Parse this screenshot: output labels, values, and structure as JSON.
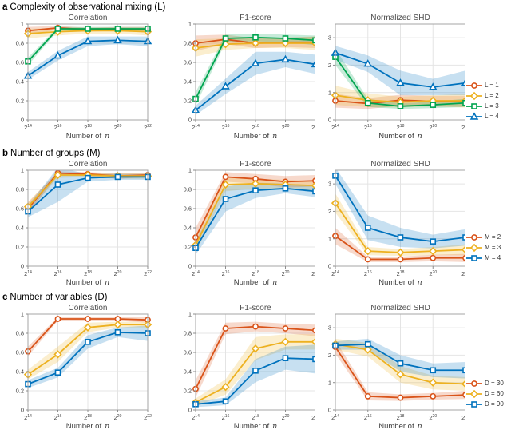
{
  "figure": {
    "xlabel": "Number of",
    "xlabel_var": "n",
    "colors": {
      "orange": "#D95319",
      "yellow": "#EDB120",
      "green": "#00A550",
      "blue": "#0072BD"
    }
  },
  "chart_data": [
    {
      "row_letter": "a",
      "row_title": "Complexity of observational mixing (L)",
      "type": "line",
      "x_tick_labels": [
        "2^14",
        "2^16",
        "2^18",
        "2^20",
        "2^22"
      ],
      "xlabel": "Number of",
      "xlabel_var": "n",
      "legend_position": "right",
      "legend": [
        {
          "label": "L = 1",
          "color": "#D95319",
          "marker": "circle"
        },
        {
          "label": "L = 2",
          "color": "#EDB120",
          "marker": "diamond"
        },
        {
          "label": "L = 3",
          "color": "#00A550",
          "marker": "square"
        },
        {
          "label": "L = 4",
          "color": "#0072BD",
          "marker": "triangle"
        }
      ],
      "panels": [
        {
          "title": "Correlation",
          "ylim": [
            0,
            1
          ],
          "yticks": [
            0,
            0.2,
            0.4,
            0.6,
            0.8,
            1
          ],
          "grid": true,
          "series": [
            {
              "name": "L = 1",
              "values": [
                0.93,
                0.96,
                0.94,
                0.95,
                0.94
              ],
              "band": [
                0.04,
                0.02,
                0.02,
                0.02,
                0.03
              ]
            },
            {
              "name": "L = 2",
              "values": [
                0.9,
                0.92,
                0.93,
                0.93,
                0.92
              ],
              "band": [
                0.05,
                0.04,
                0.03,
                0.03,
                0.04
              ]
            },
            {
              "name": "L = 3",
              "values": [
                0.61,
                0.95,
                0.95,
                0.95,
                0.95
              ],
              "band": [
                0.04,
                0.02,
                0.02,
                0.02,
                0.02
              ]
            },
            {
              "name": "L = 4",
              "values": [
                0.46,
                0.67,
                0.82,
                0.83,
                0.82
              ],
              "band": [
                0.04,
                0.05,
                0.05,
                0.04,
                0.05
              ]
            }
          ]
        },
        {
          "title": "F1-score",
          "ylim": [
            0,
            1
          ],
          "yticks": [
            0,
            0.2,
            0.4,
            0.6,
            0.8,
            1
          ],
          "grid": true,
          "series": [
            {
              "name": "L = 1",
              "values": [
                0.8,
                0.84,
                0.8,
                0.81,
                0.81
              ],
              "band": [
                0.08,
                0.05,
                0.05,
                0.05,
                0.06
              ]
            },
            {
              "name": "L = 2",
              "values": [
                0.75,
                0.79,
                0.8,
                0.8,
                0.8
              ],
              "band": [
                0.09,
                0.06,
                0.05,
                0.05,
                0.07
              ]
            },
            {
              "name": "L = 3",
              "values": [
                0.22,
                0.85,
                0.86,
                0.85,
                0.83
              ],
              "band": [
                0.07,
                0.04,
                0.04,
                0.04,
                0.05
              ]
            },
            {
              "name": "L = 4",
              "values": [
                0.1,
                0.35,
                0.59,
                0.63,
                0.58
              ],
              "band": [
                0.05,
                0.08,
                0.12,
                0.08,
                0.1
              ]
            }
          ]
        },
        {
          "title": "Normalized SHD",
          "ylim": [
            0,
            3.5
          ],
          "yticks": [
            0,
            1,
            2,
            3
          ],
          "grid": true,
          "series": [
            {
              "name": "L = 1",
              "values": [
                0.7,
                0.6,
                0.72,
                0.68,
                0.68
              ],
              "band": [
                0.25,
                0.2,
                0.2,
                0.2,
                0.2
              ]
            },
            {
              "name": "L = 2",
              "values": [
                0.9,
                0.72,
                0.65,
                0.7,
                0.7
              ],
              "band": [
                0.35,
                0.25,
                0.2,
                0.2,
                0.25
              ]
            },
            {
              "name": "L = 3",
              "values": [
                2.3,
                0.62,
                0.5,
                0.55,
                0.62
              ],
              "band": [
                0.3,
                0.15,
                0.1,
                0.12,
                0.15
              ]
            },
            {
              "name": "L = 4",
              "values": [
                2.45,
                2.05,
                1.35,
                1.2,
                1.35
              ],
              "band": [
                0.25,
                0.3,
                0.45,
                0.3,
                0.45
              ]
            }
          ]
        }
      ]
    },
    {
      "row_letter": "b",
      "row_title": "Number of groups (M)",
      "type": "line",
      "x_tick_labels": [
        "2^14",
        "2^16",
        "2^18",
        "2^20",
        "2^22"
      ],
      "xlabel": "Number of",
      "xlabel_var": "n",
      "legend_position": "right",
      "legend": [
        {
          "label": "M = 2",
          "color": "#D95319",
          "marker": "circle"
        },
        {
          "label": "M = 3",
          "color": "#EDB120",
          "marker": "diamond"
        },
        {
          "label": "M = 4",
          "color": "#0072BD",
          "marker": "square"
        }
      ],
      "panels": [
        {
          "title": "Correlation",
          "ylim": [
            0,
            1
          ],
          "yticks": [
            0,
            0.2,
            0.4,
            0.6,
            0.8,
            1
          ],
          "grid": true,
          "series": [
            {
              "name": "M = 2",
              "values": [
                0.6,
                0.97,
                0.96,
                0.94,
                0.95
              ],
              "band": [
                0.06,
                0.02,
                0.02,
                0.03,
                0.02
              ]
            },
            {
              "name": "M = 3",
              "values": [
                0.62,
                0.95,
                0.95,
                0.94,
                0.94
              ],
              "band": [
                0.05,
                0.03,
                0.02,
                0.03,
                0.03
              ]
            },
            {
              "name": "M = 4",
              "values": [
                0.57,
                0.85,
                0.92,
                0.93,
                0.93
              ],
              "band": [
                0.06,
                0.18,
                0.04,
                0.03,
                0.03
              ]
            }
          ]
        },
        {
          "title": "F1-score",
          "ylim": [
            0,
            1
          ],
          "yticks": [
            0,
            0.2,
            0.4,
            0.6,
            0.8,
            1
          ],
          "grid": true,
          "series": [
            {
              "name": "M = 2",
              "values": [
                0.3,
                0.93,
                0.91,
                0.88,
                0.89
              ],
              "band": [
                0.1,
                0.05,
                0.05,
                0.06,
                0.06
              ]
            },
            {
              "name": "M = 3",
              "values": [
                0.22,
                0.85,
                0.86,
                0.85,
                0.84
              ],
              "band": [
                0.08,
                0.07,
                0.05,
                0.05,
                0.05
              ]
            },
            {
              "name": "M = 4",
              "values": [
                0.19,
                0.7,
                0.79,
                0.81,
                0.78
              ],
              "band": [
                0.07,
                0.13,
                0.08,
                0.05,
                0.06
              ]
            }
          ]
        },
        {
          "title": "Normalized SHD",
          "ylim": [
            0,
            3.5
          ],
          "yticks": [
            0,
            1,
            2,
            3
          ],
          "grid": true,
          "series": [
            {
              "name": "M = 2",
              "values": [
                1.1,
                0.25,
                0.25,
                0.3,
                0.3
              ],
              "band": [
                0.3,
                0.1,
                0.1,
                0.12,
                0.15
              ]
            },
            {
              "name": "M = 3",
              "values": [
                2.3,
                0.55,
                0.5,
                0.55,
                0.6
              ],
              "band": [
                0.35,
                0.15,
                0.12,
                0.15,
                0.2
              ]
            },
            {
              "name": "M = 4",
              "values": [
                3.3,
                1.4,
                1.05,
                0.9,
                1.05
              ],
              "band": [
                0.3,
                0.45,
                0.35,
                0.25,
                0.3
              ]
            }
          ]
        }
      ]
    },
    {
      "row_letter": "c",
      "row_title": "Number of variables (D)",
      "type": "line",
      "x_tick_labels": [
        "2^14",
        "2^16",
        "2^18",
        "2^20",
        "2^22"
      ],
      "xlabel": "Number of",
      "xlabel_var": "n",
      "legend_position": "right",
      "legend": [
        {
          "label": "D = 30",
          "color": "#D95319",
          "marker": "circle"
        },
        {
          "label": "D = 60",
          "color": "#EDB120",
          "marker": "diamond"
        },
        {
          "label": "D = 90",
          "color": "#0072BD",
          "marker": "square"
        }
      ],
      "panels": [
        {
          "title": "Correlation",
          "ylim": [
            0,
            1
          ],
          "yticks": [
            0,
            0.2,
            0.4,
            0.6,
            0.8,
            1
          ],
          "grid": true,
          "series": [
            {
              "name": "D = 30",
              "values": [
                0.61,
                0.95,
                0.95,
                0.95,
                0.94
              ],
              "band": [
                0.05,
                0.02,
                0.02,
                0.02,
                0.03
              ]
            },
            {
              "name": "D = 60",
              "values": [
                0.37,
                0.58,
                0.86,
                0.89,
                0.89
              ],
              "band": [
                0.05,
                0.08,
                0.05,
                0.03,
                0.03
              ]
            },
            {
              "name": "D = 90",
              "values": [
                0.27,
                0.39,
                0.71,
                0.81,
                0.8
              ],
              "band": [
                0.04,
                0.05,
                0.07,
                0.05,
                0.08
              ]
            }
          ]
        },
        {
          "title": "F1-score",
          "ylim": [
            0,
            1
          ],
          "yticks": [
            0,
            0.2,
            0.4,
            0.6,
            0.8,
            1
          ],
          "grid": true,
          "series": [
            {
              "name": "D = 30",
              "values": [
                0.22,
                0.85,
                0.87,
                0.85,
                0.83
              ],
              "band": [
                0.09,
                0.06,
                0.05,
                0.05,
                0.06
              ]
            },
            {
              "name": "D = 60",
              "values": [
                0.08,
                0.24,
                0.64,
                0.71,
                0.71
              ],
              "band": [
                0.04,
                0.08,
                0.12,
                0.08,
                0.08
              ]
            },
            {
              "name": "D = 90",
              "values": [
                0.06,
                0.09,
                0.41,
                0.54,
                0.53
              ],
              "band": [
                0.03,
                0.04,
                0.12,
                0.12,
                0.15
              ]
            }
          ]
        },
        {
          "title": "Normalized SHD",
          "ylim": [
            0,
            3.5
          ],
          "yticks": [
            0,
            1,
            2,
            3
          ],
          "grid": true,
          "series": [
            {
              "name": "D = 30",
              "values": [
                2.3,
                0.5,
                0.45,
                0.5,
                0.55
              ],
              "band": [
                0.25,
                0.15,
                0.12,
                0.12,
                0.15
              ]
            },
            {
              "name": "D = 60",
              "values": [
                2.4,
                2.2,
                1.3,
                1.0,
                0.95
              ],
              "band": [
                0.2,
                0.25,
                0.3,
                0.25,
                0.25
              ]
            },
            {
              "name": "D = 90",
              "values": [
                2.35,
                2.4,
                1.7,
                1.45,
                1.45
              ],
              "band": [
                0.15,
                0.2,
                0.3,
                0.25,
                0.3
              ]
            }
          ]
        }
      ]
    }
  ]
}
